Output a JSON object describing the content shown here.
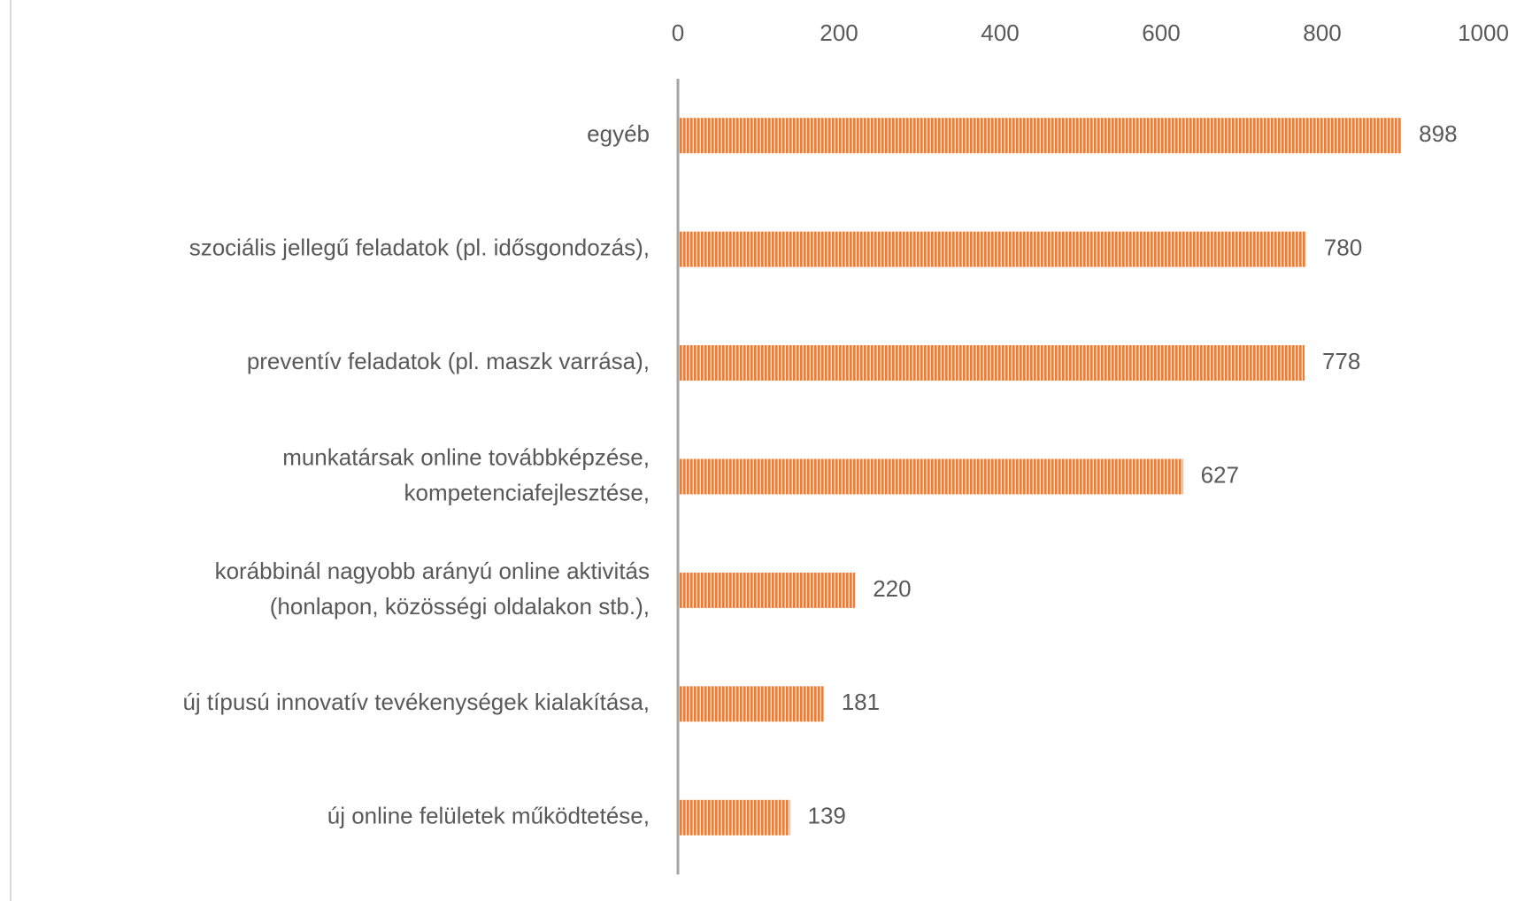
{
  "chart_data": {
    "type": "bar",
    "orientation": "horizontal",
    "categories": [
      "egyéb",
      "szociális jellegű feladatok (pl. idősgondozás),",
      "preventív feladatok (pl. maszk varrása),",
      "munkatársak online továbbképzése,\nkompetenciafejlesztése,",
      "korábbinál nagyobb arányú online aktivitás\n(honlapon, közösségi oldalakon stb.),",
      "új típusú innovatív tevékenységek kialakítása,",
      "új online felületek működtetése,"
    ],
    "values": [
      898,
      780,
      778,
      627,
      220,
      181,
      139
    ],
    "color": "#ed7d31",
    "xlim": [
      0,
      1000
    ],
    "xticks": [
      0,
      200,
      400,
      600,
      800,
      1000
    ],
    "grid": false
  }
}
